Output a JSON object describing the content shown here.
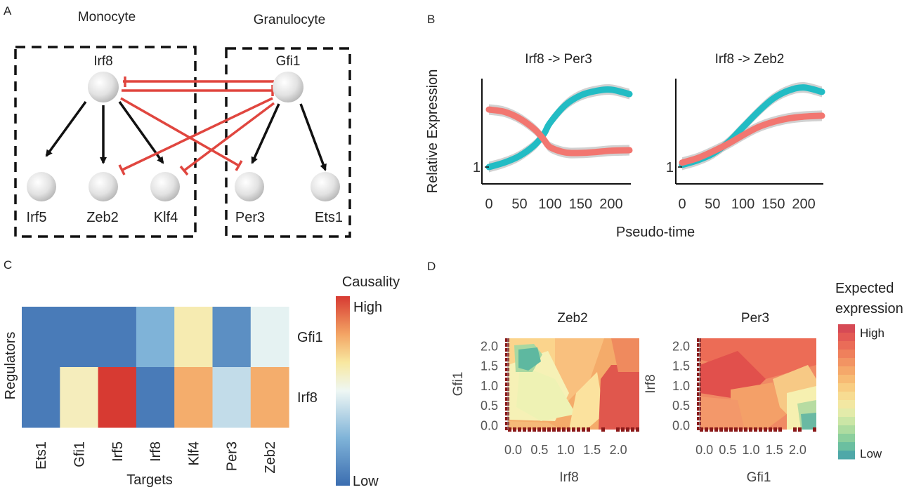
{
  "panels": {
    "A": "A",
    "B": "B",
    "C": "C",
    "D": "D"
  },
  "colors": {
    "activation": "#111111",
    "repression": "#e0463f",
    "teal_series": "#22bcc4",
    "salmon_series": "#f27670",
    "ci_band": "#c9c9c9"
  },
  "network": {
    "groups": [
      "Monocyte",
      "Granulocyte"
    ],
    "regulators": [
      "Irf8",
      "Gfi1"
    ],
    "targets": [
      "Irf5",
      "Zeb2",
      "Klf4",
      "Per3",
      "Ets1"
    ],
    "activations": [
      [
        "Irf8",
        "Irf5"
      ],
      [
        "Irf8",
        "Zeb2"
      ],
      [
        "Irf8",
        "Klf4"
      ],
      [
        "Gfi1",
        "Per3"
      ],
      [
        "Gfi1",
        "Ets1"
      ]
    ],
    "repressions": [
      [
        "Irf8",
        "Gfi1"
      ],
      [
        "Gfi1",
        "Irf8"
      ],
      [
        "Irf8",
        "Per3"
      ],
      [
        "Gfi1",
        "Zeb2"
      ],
      [
        "Gfi1",
        "Klf4"
      ]
    ]
  },
  "chart_data": [
    {
      "type": "line",
      "title": "Irf8 -> Per3",
      "xlabel": "Pseudo-time",
      "ylabel": "Relative Expression",
      "xticks": [
        0,
        50,
        100,
        150,
        200
      ],
      "yticks": [
        1
      ],
      "xlim": [
        0,
        230
      ],
      "series": [
        {
          "color": "teal",
          "x": [
            0,
            25,
            50,
            75,
            90,
            100,
            125,
            150,
            175,
            200,
            230
          ],
          "y": [
            1.0,
            1.1,
            1.25,
            1.5,
            1.75,
            2.0,
            2.4,
            2.62,
            2.72,
            2.75,
            2.65
          ]
        },
        {
          "color": "salmon",
          "x": [
            0,
            25,
            50,
            75,
            90,
            100,
            125,
            150,
            175,
            200,
            230
          ],
          "y": [
            2.3,
            2.25,
            2.1,
            1.85,
            1.62,
            1.45,
            1.33,
            1.32,
            1.34,
            1.37,
            1.38
          ]
        }
      ]
    },
    {
      "type": "line",
      "title": "Irf8 -> Zeb2",
      "xlabel": "Pseudo-time",
      "ylabel": "",
      "xticks": [
        0,
        50,
        100,
        150,
        200
      ],
      "yticks": [
        1
      ],
      "xlim": [
        0,
        230
      ],
      "series": [
        {
          "color": "teal",
          "x": [
            0,
            25,
            50,
            75,
            100,
            125,
            150,
            175,
            200,
            230
          ],
          "y": [
            1.05,
            1.15,
            1.3,
            1.55,
            1.9,
            2.25,
            2.55,
            2.73,
            2.8,
            2.7
          ]
        },
        {
          "color": "salmon",
          "x": [
            0,
            25,
            50,
            75,
            100,
            125,
            150,
            175,
            200,
            230
          ],
          "y": [
            1.1,
            1.2,
            1.35,
            1.52,
            1.72,
            1.9,
            2.02,
            2.1,
            2.14,
            2.16
          ]
        }
      ]
    },
    {
      "type": "heatmap",
      "title": "",
      "xlabel": "Targets",
      "ylabel": "Regulators",
      "legend_title": "Causality",
      "legend_high": "High",
      "legend_low": "Low",
      "columns": [
        "Ets1",
        "Gfi1",
        "Irf5",
        "Irf8",
        "Klf4",
        "Per3",
        "Zeb2"
      ],
      "rows": [
        "Gfi1",
        "Irf8"
      ],
      "values": [
        [
          0.05,
          0.05,
          0.05,
          0.25,
          0.62,
          0.12,
          0.48
        ],
        [
          0.05,
          0.6,
          1.0,
          0.05,
          0.78,
          0.4,
          0.78
        ]
      ]
    },
    {
      "type": "heatmap",
      "title": "Zeb2",
      "xlabel": "Irf8",
      "ylabel": "Gfi1",
      "xticks": [
        "0.0",
        "0.5",
        "1.0",
        "1.5",
        "2.0"
      ],
      "yticks": [
        "0.0",
        "0.5",
        "1.0",
        "1.5",
        "2.0"
      ],
      "xlim": [
        -0.1,
        2.4
      ],
      "ylim": [
        -0.1,
        2.2
      ],
      "legend_title_line1": "Expected",
      "legend_title_line2": "expression",
      "legend_high": "High",
      "legend_low": "Low"
    },
    {
      "type": "heatmap",
      "title": "Per3",
      "xlabel": "Gfi1",
      "ylabel": "Irf8",
      "xticks": [
        "0.0",
        "0.5",
        "1.0",
        "1.5",
        "2.0"
      ],
      "yticks": [
        "0.0",
        "0.5",
        "1.0",
        "1.5",
        "2.0"
      ],
      "xlim": [
        -0.1,
        2.4
      ],
      "ylim": [
        -0.1,
        2.2
      ]
    }
  ]
}
